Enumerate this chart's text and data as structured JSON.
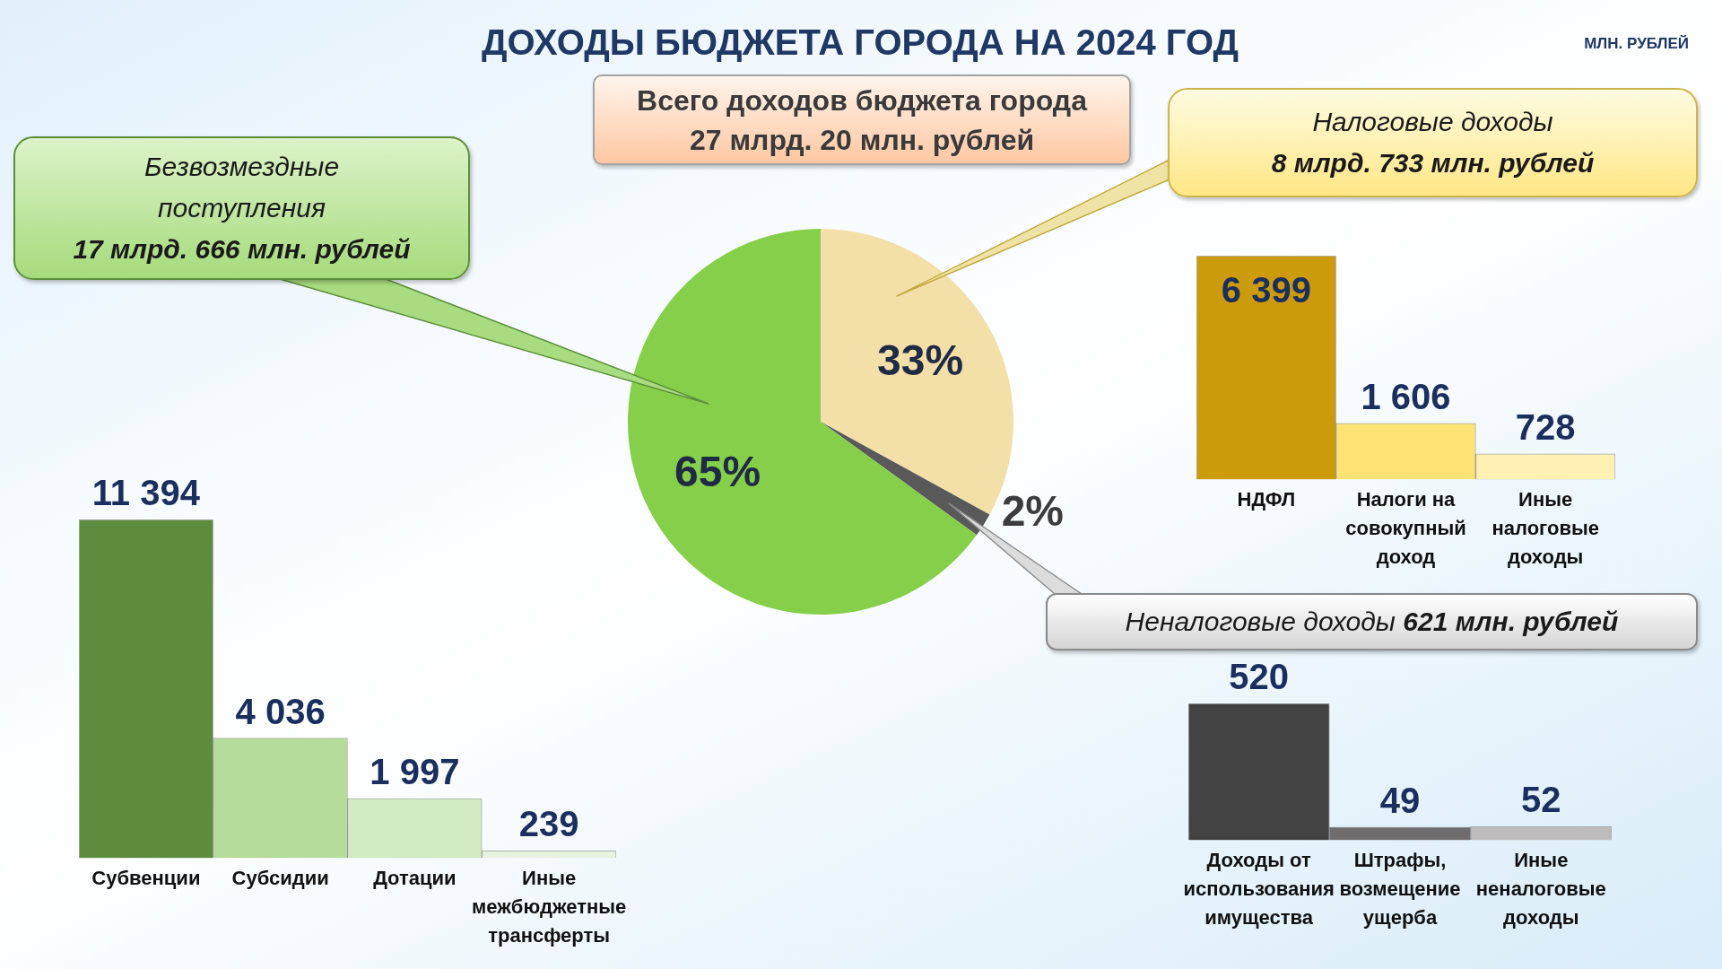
{
  "chart_data": [
    {
      "type": "pie",
      "title": "ДОХОДЫ БЮДЖЕТА ГОРОДА НА 2024 ГОД",
      "subtitle": "Всего доходов бюджета города 27 млрд. 20 млн. рублей",
      "categories": [
        null,
        null,
        null
      ],
      "values": [
        33,
        2,
        65
      ],
      "colors": [
        "#f3e0a8",
        "#595959",
        "#86cf4a"
      ],
      "value_labels": [
        "33%",
        "2%",
        "65%"
      ],
      "annotations": [
        "МЛН. РУБЛЕЙ"
      ]
    },
    {
      "type": "bar",
      "title": "Безвозмездные поступления",
      "subtitle": "17 млрд. 666 млн. рублей",
      "categories": [
        "Субвенции",
        "Субсидии",
        "Дотации",
        "Иные межбюджетные трансферты"
      ],
      "values": [
        11394,
        4036,
        1997,
        239
      ],
      "colors": [
        "#5e8c3e",
        "#b5dc9a",
        "#d3ebc3",
        "#e8f3df"
      ],
      "value_labels": [
        "11 394",
        "4 036",
        "1 997",
        "239"
      ],
      "tick_labels": "x"
    },
    {
      "type": "bar",
      "title": "Налоговые доходы",
      "subtitle": "8 млрд. 733 млн. рублей",
      "categories": [
        "НДФЛ",
        "Налоги на совокупный доход",
        "Иные налоговые доходы"
      ],
      "values": [
        6399,
        1606,
        728
      ],
      "colors": [
        "#cc9b0c",
        "#ffe374",
        "#fff1b3"
      ],
      "value_labels": [
        "6 399",
        "1 606",
        "728"
      ],
      "tick_labels": "x"
    },
    {
      "type": "bar",
      "title": "Неналоговые доходы",
      "subtitle": "621 млн. рублей",
      "categories": [
        "Доходы от использования имущества",
        "Штрафы, возмещение ущерба",
        "Иные неналоговые доходы"
      ],
      "values": [
        520,
        49,
        52
      ],
      "colors": [
        "#434343",
        "#6f6d6d",
        "#bdbbbb"
      ],
      "value_labels": [
        "520",
        "49",
        "52"
      ],
      "tick_labels": "x"
    }
  ]
}
